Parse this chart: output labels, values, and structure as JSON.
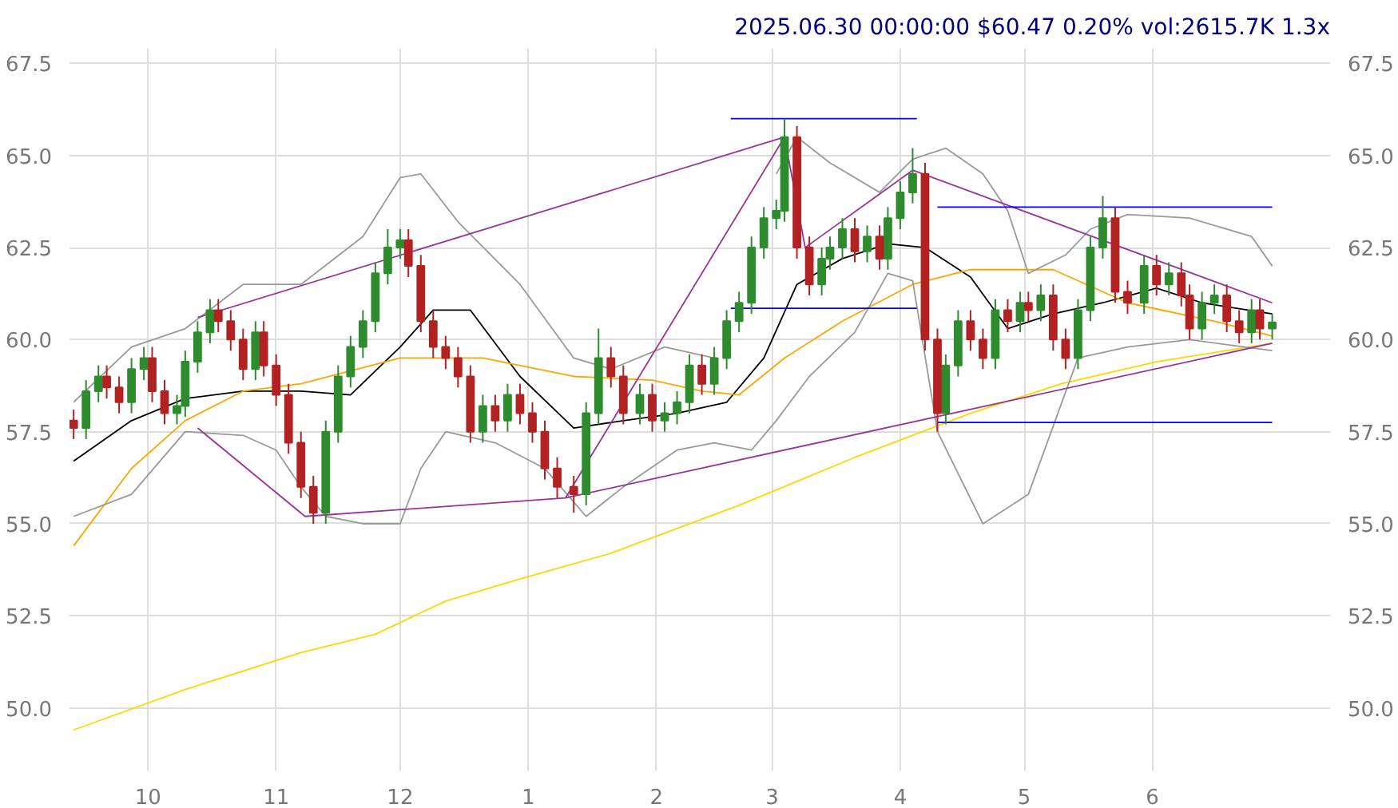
{
  "chart_data": {
    "type": "candlestick",
    "title": "2025.06.30 00:00:00 $60.47 0.20% vol:2615.7K 1.3x",
    "x": [
      "2024-09-13",
      "2024-09-16",
      "2024-09-19",
      "2024-09-21",
      "2024-09-24",
      "2024-09-27",
      "2024-09-30",
      "2024-10-02",
      "2024-10-05",
      "2024-10-08",
      "2024-10-10",
      "2024-10-13",
      "2024-10-16",
      "2024-10-18",
      "2024-10-21",
      "2024-10-24",
      "2024-10-27",
      "2024-10-29",
      "2024-11-01",
      "2024-11-04",
      "2024-11-07",
      "2024-11-10",
      "2024-11-13",
      "2024-11-16",
      "2024-11-19",
      "2024-11-22",
      "2024-11-25",
      "2024-11-28",
      "2024-12-01",
      "2024-12-03",
      "2024-12-06",
      "2024-12-09",
      "2024-12-12",
      "2024-12-15",
      "2024-12-18",
      "2024-12-21",
      "2024-12-24",
      "2024-12-27",
      "2024-12-30",
      "2025-01-02",
      "2025-01-05",
      "2025-01-08",
      "2025-01-12",
      "2025-01-15",
      "2025-01-18",
      "2025-01-21",
      "2025-01-24",
      "2025-01-28",
      "2025-01-31",
      "2025-02-03",
      "2025-02-06",
      "2025-02-09",
      "2025-02-12",
      "2025-02-15",
      "2025-02-18",
      "2025-02-21",
      "2025-02-24",
      "2025-02-27",
      "2025-03-02",
      "2025-03-04",
      "2025-03-07",
      "2025-03-10",
      "2025-03-13",
      "2025-03-15",
      "2025-03-18",
      "2025-03-21",
      "2025-03-24",
      "2025-03-27",
      "2025-03-29",
      "2025-04-01",
      "2025-04-04",
      "2025-04-07",
      "2025-04-10",
      "2025-04-12",
      "2025-04-15",
      "2025-04-18",
      "2025-04-21",
      "2025-04-24",
      "2025-04-27",
      "2025-04-30",
      "2025-05-02",
      "2025-05-05",
      "2025-05-08",
      "2025-05-11",
      "2025-05-14",
      "2025-05-17",
      "2025-05-20",
      "2025-05-23",
      "2025-05-26",
      "2025-05-30",
      "2025-06-02",
      "2025-06-05",
      "2025-06-08",
      "2025-06-10",
      "2025-06-13",
      "2025-06-16",
      "2025-06-19",
      "2025-06-22",
      "2025-06-25",
      "2025-06-27",
      "2025-06-30"
    ],
    "ohlc": [
      [
        57.8,
        58.1,
        57.3,
        57.6
      ],
      [
        57.6,
        58.9,
        57.3,
        58.6
      ],
      [
        58.6,
        59.3,
        58.3,
        59.0
      ],
      [
        59.0,
        59.3,
        58.4,
        58.7
      ],
      [
        58.7,
        59.0,
        58.0,
        58.3
      ],
      [
        58.3,
        59.5,
        58.0,
        59.2
      ],
      [
        59.2,
        59.8,
        58.9,
        59.5
      ],
      [
        59.5,
        59.8,
        58.3,
        58.6
      ],
      [
        58.6,
        58.9,
        57.7,
        58.0
      ],
      [
        58.0,
        58.5,
        57.7,
        58.2
      ],
      [
        58.2,
        59.7,
        57.9,
        59.4
      ],
      [
        59.4,
        60.5,
        59.1,
        60.2
      ],
      [
        60.2,
        61.1,
        59.9,
        60.8
      ],
      [
        60.8,
        61.1,
        60.2,
        60.5
      ],
      [
        60.5,
        60.8,
        59.7,
        60.0
      ],
      [
        60.0,
        60.3,
        58.9,
        59.2
      ],
      [
        59.2,
        60.5,
        58.9,
        60.2
      ],
      [
        60.2,
        60.5,
        59.0,
        59.3
      ],
      [
        59.3,
        59.6,
        58.2,
        58.5
      ],
      [
        58.5,
        58.8,
        56.9,
        57.2
      ],
      [
        57.2,
        57.5,
        55.7,
        56.0
      ],
      [
        56.0,
        56.3,
        55.0,
        55.3
      ],
      [
        55.3,
        57.8,
        55.0,
        57.5
      ],
      [
        57.5,
        59.3,
        57.2,
        59.0
      ],
      [
        59.0,
        60.1,
        58.7,
        59.8
      ],
      [
        59.8,
        60.8,
        59.5,
        60.5
      ],
      [
        60.5,
        62.1,
        60.2,
        61.8
      ],
      [
        61.8,
        63.0,
        61.5,
        62.5
      ],
      [
        62.5,
        63.0,
        62.2,
        62.7
      ],
      [
        62.7,
        63.0,
        61.7,
        62.0
      ],
      [
        62.0,
        62.3,
        60.2,
        60.5
      ],
      [
        60.5,
        60.8,
        59.5,
        59.8
      ],
      [
        59.8,
        60.1,
        59.2,
        59.5
      ],
      [
        59.5,
        59.8,
        58.7,
        59.0
      ],
      [
        59.0,
        59.3,
        57.2,
        57.5
      ],
      [
        57.5,
        58.5,
        57.2,
        58.2
      ],
      [
        58.2,
        58.5,
        57.5,
        57.8
      ],
      [
        57.8,
        58.8,
        57.5,
        58.5
      ],
      [
        58.5,
        58.8,
        57.7,
        58.0
      ],
      [
        58.0,
        58.3,
        57.2,
        57.5
      ],
      [
        57.5,
        57.8,
        56.2,
        56.5
      ],
      [
        56.5,
        56.8,
        55.7,
        56.0
      ],
      [
        56.0,
        56.3,
        55.3,
        55.8
      ],
      [
        55.8,
        58.3,
        55.5,
        58.0
      ],
      [
        58.0,
        60.3,
        57.7,
        59.5
      ],
      [
        59.5,
        59.8,
        58.7,
        59.0
      ],
      [
        59.0,
        59.3,
        57.7,
        58.0
      ],
      [
        58.0,
        58.8,
        57.7,
        58.5
      ],
      [
        58.5,
        58.8,
        57.5,
        57.8
      ],
      [
        57.8,
        58.3,
        57.5,
        58.0
      ],
      [
        58.0,
        58.6,
        57.7,
        58.3
      ],
      [
        58.3,
        59.6,
        58.0,
        59.3
      ],
      [
        59.3,
        59.6,
        58.5,
        58.8
      ],
      [
        58.8,
        59.8,
        58.5,
        59.5
      ],
      [
        59.5,
        60.8,
        59.2,
        60.5
      ],
      [
        60.5,
        61.3,
        60.2,
        61.0
      ],
      [
        61.0,
        62.8,
        60.7,
        62.5
      ],
      [
        62.5,
        63.6,
        62.2,
        63.3
      ],
      [
        63.3,
        63.8,
        63.0,
        63.5
      ],
      [
        63.5,
        66.0,
        63.2,
        65.5
      ],
      [
        65.5,
        65.8,
        62.2,
        62.5
      ],
      [
        62.5,
        62.8,
        61.2,
        61.5
      ],
      [
        61.5,
        62.5,
        61.2,
        62.2
      ],
      [
        62.2,
        62.8,
        61.9,
        62.5
      ],
      [
        62.5,
        63.3,
        62.2,
        63.0
      ],
      [
        63.0,
        63.3,
        62.1,
        62.4
      ],
      [
        62.4,
        63.1,
        62.1,
        62.8
      ],
      [
        62.8,
        63.1,
        61.9,
        62.2
      ],
      [
        62.2,
        63.6,
        61.9,
        63.3
      ],
      [
        63.3,
        64.3,
        63.0,
        64.0
      ],
      [
        64.0,
        65.2,
        63.7,
        64.5
      ],
      [
        64.5,
        64.8,
        59.7,
        60.0
      ],
      [
        60.0,
        60.3,
        57.5,
        58.0
      ],
      [
        58.0,
        59.6,
        57.7,
        59.3
      ],
      [
        59.3,
        60.8,
        59.0,
        60.5
      ],
      [
        60.5,
        60.8,
        59.7,
        60.0
      ],
      [
        60.0,
        60.3,
        59.2,
        59.5
      ],
      [
        59.5,
        61.1,
        59.2,
        60.8
      ],
      [
        60.8,
        61.1,
        60.2,
        60.5
      ],
      [
        60.5,
        61.3,
        60.2,
        61.0
      ],
      [
        61.0,
        61.3,
        60.5,
        60.8
      ],
      [
        60.8,
        61.5,
        60.5,
        61.2
      ],
      [
        61.2,
        61.5,
        59.7,
        60.0
      ],
      [
        60.0,
        60.3,
        59.2,
        59.5
      ],
      [
        59.5,
        61.1,
        59.2,
        60.8
      ],
      [
        60.8,
        62.8,
        60.5,
        62.5
      ],
      [
        62.5,
        63.9,
        62.2,
        63.3
      ],
      [
        63.3,
        63.6,
        61.0,
        61.3
      ],
      [
        61.3,
        61.6,
        60.7,
        61.0
      ],
      [
        61.0,
        62.3,
        60.7,
        62.0
      ],
      [
        62.0,
        62.3,
        61.2,
        61.5
      ],
      [
        61.5,
        62.1,
        61.2,
        61.8
      ],
      [
        61.8,
        62.1,
        60.9,
        61.2
      ],
      [
        61.2,
        61.5,
        60.0,
        60.3
      ],
      [
        60.3,
        61.3,
        60.0,
        61.0
      ],
      [
        61.0,
        61.5,
        60.7,
        61.2
      ],
      [
        61.2,
        61.5,
        60.2,
        60.5
      ],
      [
        60.5,
        60.8,
        59.9,
        60.2
      ],
      [
        60.2,
        61.1,
        59.9,
        60.8
      ],
      [
        60.8,
        61.1,
        60.0,
        60.3
      ],
      [
        60.3,
        60.7,
        60.0,
        60.47
      ]
    ],
    "series": [
      {
        "type": "line",
        "color": "#000000",
        "x": [
          "2024-09-13",
          "2024-09-27",
          "2024-10-10",
          "2024-10-24",
          "2024-11-07",
          "2024-11-19",
          "2024-12-01",
          "2024-12-09",
          "2024-12-18",
          "2024-12-30",
          "2025-01-12",
          "2025-01-24",
          "2025-02-06",
          "2025-02-18",
          "2025-02-27",
          "2025-03-07",
          "2025-03-18",
          "2025-03-29",
          "2025-04-07",
          "2025-04-18",
          "2025-04-27",
          "2025-05-08",
          "2025-05-20",
          "2025-06-02",
          "2025-06-13",
          "2025-06-30"
        ],
        "values": [
          56.7,
          57.8,
          58.4,
          58.6,
          58.6,
          58.5,
          59.8,
          60.8,
          60.8,
          59.0,
          57.6,
          57.8,
          58.0,
          58.3,
          59.5,
          61.5,
          62.2,
          62.6,
          62.5,
          61.7,
          60.3,
          60.7,
          61.0,
          61.4,
          61.0,
          60.7
        ]
      },
      {
        "type": "line",
        "color": "#ffa500",
        "x": [
          "2024-09-13",
          "2024-09-27",
          "2024-10-10",
          "2024-10-24",
          "2024-11-07",
          "2024-12-01",
          "2024-12-21",
          "2025-01-12",
          "2025-01-31",
          "2025-02-12",
          "2025-02-21",
          "2025-03-04",
          "2025-03-18",
          "2025-04-04",
          "2025-04-18",
          "2025-05-08",
          "2025-05-26",
          "2025-06-16",
          "2025-06-30"
        ],
        "values": [
          54.4,
          56.5,
          57.8,
          58.6,
          58.8,
          59.5,
          59.5,
          59.0,
          58.9,
          58.6,
          58.5,
          59.5,
          60.5,
          61.5,
          61.9,
          61.9,
          61.0,
          60.5,
          60.1
        ]
      },
      {
        "type": "line",
        "color": "#ffd700",
        "x": [
          "2024-09-13",
          "2024-10-10",
          "2024-11-07",
          "2024-11-25",
          "2024-12-12",
          "2024-12-30",
          "2025-01-21",
          "2025-02-21",
          "2025-03-21",
          "2025-04-18",
          "2025-05-10",
          "2025-06-02",
          "2025-06-30"
        ],
        "values": [
          49.4,
          50.5,
          51.5,
          52.0,
          52.9,
          53.5,
          54.2,
          55.5,
          56.8,
          58.0,
          58.8,
          59.4,
          59.9
        ]
      },
      {
        "type": "line",
        "color": "#999999",
        "x": [
          "2024-09-13",
          "2024-09-27",
          "2024-10-10",
          "2024-10-24",
          "2024-11-07",
          "2024-11-22",
          "2024-12-01",
          "2024-12-06",
          "2024-12-15",
          "2024-12-30",
          "2025-01-12",
          "2025-01-21",
          "2025-02-03",
          "2025-02-15",
          "2025-02-24",
          "2025-03-02",
          "2025-03-07",
          "2025-03-15",
          "2025-03-27",
          "2025-04-04",
          "2025-04-12",
          "2025-04-21",
          "2025-04-27",
          "2025-05-02",
          "2025-05-11",
          "2025-05-17",
          "2025-05-26",
          "2025-06-10",
          "2025-06-25",
          "2025-06-30"
        ],
        "values": [
          58.3,
          59.8,
          60.3,
          61.5,
          61.5,
          62.8,
          64.4,
          64.5,
          63.2,
          61.5,
          59.5,
          59.2,
          59.8,
          59.5,
          null,
          64.5,
          65.5,
          64.8,
          64.0,
          64.9,
          65.2,
          64.5,
          63.5,
          61.8,
          62.3,
          63.0,
          63.4,
          63.3,
          62.8,
          62.0
        ]
      },
      {
        "type": "line",
        "color": "#999999",
        "x": [
          "2024-09-13",
          "2024-09-27",
          "2024-10-10",
          "2024-10-24",
          "2024-11-01",
          "2024-11-07",
          "2024-11-13",
          "2024-11-22",
          "2024-12-01",
          "2024-12-06",
          "2024-12-12",
          "2024-12-24",
          "2025-01-05",
          "2025-01-15",
          "2025-01-24",
          "2025-02-06",
          "2025-02-15",
          "2025-02-24",
          "2025-03-02",
          "2025-03-10",
          "2025-03-21",
          "2025-03-29",
          "2025-04-04",
          "2025-04-10",
          "2025-04-21",
          "2025-05-02",
          "2025-05-14",
          "2025-05-26",
          "2025-06-10",
          "2025-06-30"
        ],
        "values": [
          55.2,
          55.8,
          57.5,
          57.4,
          57.0,
          56.0,
          55.2,
          55.0,
          55.0,
          56.5,
          57.5,
          57.2,
          56.5,
          55.2,
          56.0,
          57.0,
          57.2,
          57.0,
          57.8,
          59.0,
          60.2,
          61.8,
          61.6,
          57.5,
          55.0,
          55.8,
          59.5,
          59.8,
          60.0,
          59.7
        ]
      },
      {
        "type": "line",
        "color": "#993399",
        "x": [
          "2024-10-13",
          "2025-03-04"
        ],
        "values": [
          60.6,
          65.5
        ]
      },
      {
        "type": "line",
        "color": "#993399",
        "x": [
          "2024-10-13",
          "2024-11-08",
          "2025-01-10",
          "2025-03-04",
          "2025-03-09",
          "2025-04-04",
          "2025-06-30"
        ],
        "values": [
          57.6,
          55.2,
          55.7,
          65.5,
          62.5,
          64.6,
          61.0
        ]
      },
      {
        "type": "line",
        "color": "#993399",
        "x": [
          "2025-01-10",
          "2025-06-30"
        ],
        "values": [
          55.7,
          59.9
        ]
      },
      {
        "type": "line",
        "color": "#0000ff",
        "x": [
          "2025-02-19",
          "2025-04-05"
        ],
        "values": [
          66.0,
          66.0
        ]
      },
      {
        "type": "line",
        "color": "#0000ff",
        "x": [
          "2025-02-19",
          "2025-04-05"
        ],
        "values": [
          60.85,
          60.85
        ]
      },
      {
        "type": "line",
        "color": "#0000ff",
        "x": [
          "2025-04-10",
          "2025-06-30"
        ],
        "values": [
          63.6,
          63.6
        ]
      },
      {
        "type": "line",
        "color": "#0000ff",
        "x": [
          "2025-04-10",
          "2025-06-30"
        ],
        "values": [
          57.75,
          57.75
        ]
      }
    ],
    "xlim": [
      "2024-09-12",
      "2025-07-14"
    ],
    "xticks": [
      {
        "value": "2024-10-01",
        "label": "10"
      },
      {
        "value": "2024-11-01",
        "label": "11"
      },
      {
        "value": "2024-12-01",
        "label": "12"
      },
      {
        "value": "2025-01-01",
        "label": "1"
      },
      {
        "value": "2025-02-01",
        "label": "2"
      },
      {
        "value": "2025-03-01",
        "label": "3"
      },
      {
        "value": "2025-04-01",
        "label": "4"
      },
      {
        "value": "2025-05-01",
        "label": "5"
      },
      {
        "value": "2025-06-01",
        "label": "6"
      }
    ],
    "ylim": [
      48.3,
      67.9
    ],
    "yticks": [
      {
        "value": 50,
        "label": "50.0"
      },
      {
        "value": 52.5,
        "label": "52.5"
      },
      {
        "value": 55,
        "label": "55.0"
      },
      {
        "value": 57.5,
        "label": "57.5"
      },
      {
        "value": 60,
        "label": "60.0"
      },
      {
        "value": 62.5,
        "label": "62.5"
      },
      {
        "value": 65,
        "label": "65.0"
      },
      {
        "value": 67.5,
        "label": "67.5"
      }
    ],
    "y2lim": [
      48.3,
      67.9
    ],
    "y2ticks": [
      {
        "value": 50,
        "label": "50.0"
      },
      {
        "value": 52.5,
        "label": "52.5"
      },
      {
        "value": 55,
        "label": "55.0"
      },
      {
        "value": 57.5,
        "label": "57.5"
      },
      {
        "value": 60,
        "label": "60.0"
      },
      {
        "value": 62.5,
        "label": "62.5"
      },
      {
        "value": 65,
        "label": "65.0"
      },
      {
        "value": 67.5,
        "label": "67.5"
      }
    ],
    "grid": true
  }
}
